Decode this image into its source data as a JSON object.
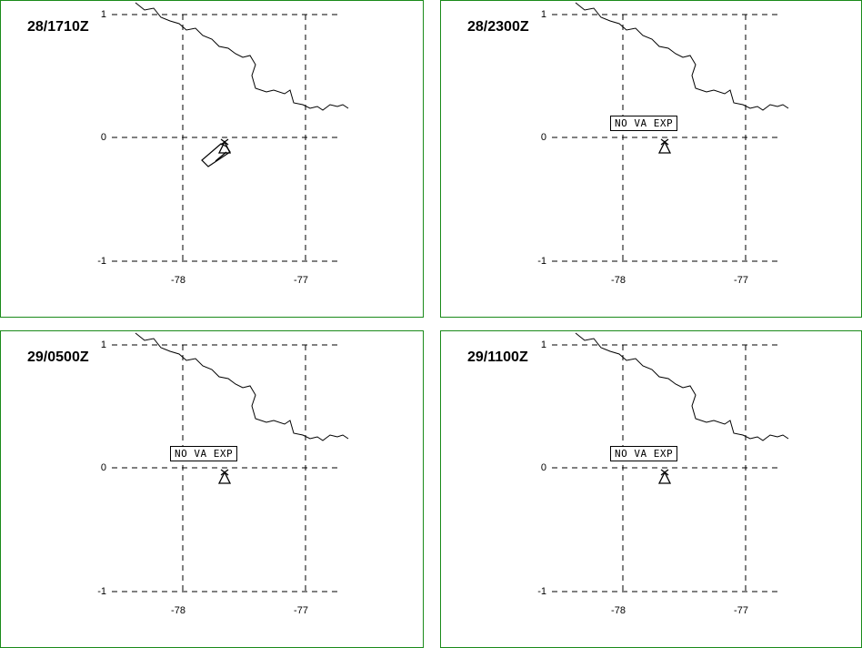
{
  "map_axes": {
    "y_labels": [
      "1",
      "0",
      "-1"
    ],
    "x_labels": [
      "-78",
      "-77"
    ]
  },
  "panels": [
    {
      "id": "p1",
      "time_label": "28/1710Z",
      "advisory_text": "",
      "plume": true
    },
    {
      "id": "p2",
      "time_label": "28/2300Z",
      "advisory_text": "NO VA EXP",
      "plume": false
    },
    {
      "id": "p3",
      "time_label": "29/0500Z",
      "advisory_text": "NO VA EXP",
      "plume": false
    },
    {
      "id": "p4",
      "time_label": "29/1100Z",
      "advisory_text": "NO VA EXP",
      "plume": false
    }
  ],
  "colors": {
    "panel_border": "#1a8a1a",
    "line": "#000000",
    "background": "#ffffff"
  },
  "icons": {
    "volcano": "volcano-triangle-icon"
  }
}
